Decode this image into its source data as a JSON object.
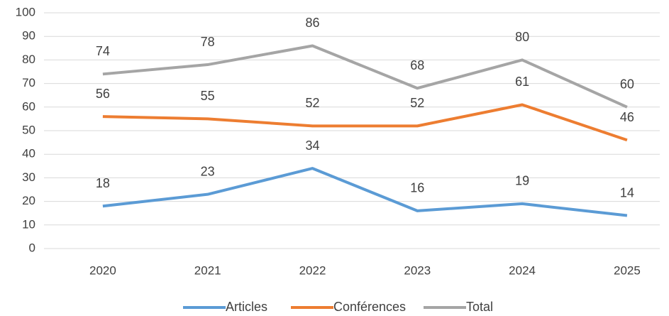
{
  "chart_data": {
    "type": "line",
    "categories": [
      "2020",
      "2021",
      "2022",
      "2023",
      "2024",
      "2025"
    ],
    "series": [
      {
        "name": "Articles",
        "color": "#5b9bd5",
        "values": [
          18,
          23,
          34,
          16,
          19,
          14
        ]
      },
      {
        "name": "Conférences",
        "color": "#ed7d31",
        "values": [
          56,
          55,
          52,
          52,
          61,
          46
        ]
      },
      {
        "name": "Total",
        "color": "#a5a5a5",
        "values": [
          74,
          78,
          86,
          68,
          80,
          60
        ]
      }
    ],
    "ylim": [
      0,
      100
    ],
    "yticks": [
      0,
      10,
      20,
      30,
      40,
      50,
      60,
      70,
      80,
      90,
      100
    ],
    "grid": true,
    "legend": "bottom"
  }
}
